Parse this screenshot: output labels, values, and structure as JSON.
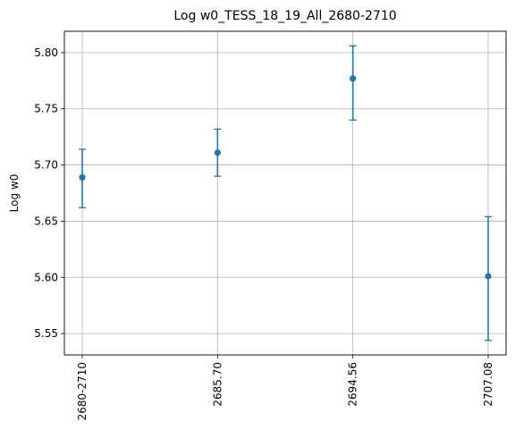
{
  "chart_data": {
    "type": "scatter",
    "title": "Log w0_TESS_18_19_All_2680-2710",
    "xlabel": "",
    "ylabel": "Log w0",
    "categories": [
      "2680-2710",
      "2685.70",
      "2694.56",
      "2707.08"
    ],
    "values": [
      5.689,
      5.711,
      5.777,
      5.601
    ],
    "error_low": [
      5.662,
      5.69,
      5.74,
      5.544
    ],
    "error_high": [
      5.714,
      5.732,
      5.806,
      5.654
    ],
    "yticks": [
      "5.55",
      "5.60",
      "5.65",
      "5.70",
      "5.75",
      "5.80"
    ],
    "ytick_values": [
      5.55,
      5.6,
      5.65,
      5.7,
      5.75,
      5.8
    ],
    "ylim": [
      5.531,
      5.819
    ],
    "grid": true,
    "x_tick_rotation": "vertical",
    "series_color": "#1f77b4",
    "grid_color": "#b0b0b0"
  }
}
